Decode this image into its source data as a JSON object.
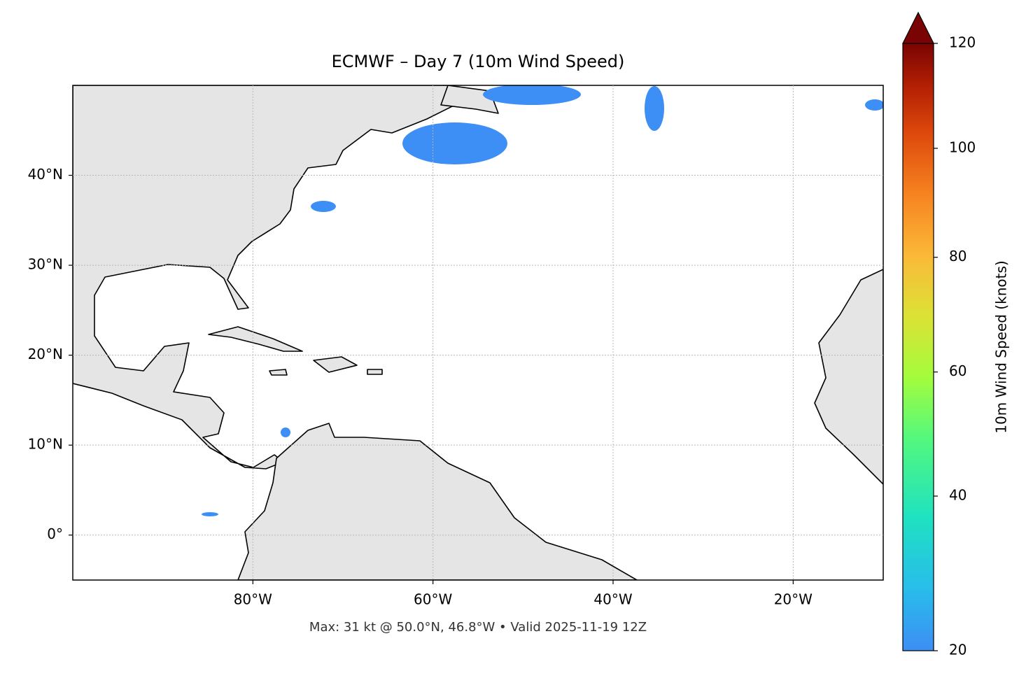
{
  "chart_data": {
    "type": "map",
    "title": "ECMWF – Day 7 (10m Wind Speed)",
    "xlim": [
      -100,
      -10
    ],
    "ylim": [
      -5,
      50
    ],
    "xticks": [
      {
        "value": -80,
        "label": "80°W"
      },
      {
        "value": -60,
        "label": "60°W"
      },
      {
        "value": -40,
        "label": "40°W"
      },
      {
        "value": -20,
        "label": "20°W"
      }
    ],
    "yticks": [
      {
        "value": 0,
        "label": "0°"
      },
      {
        "value": 10,
        "label": "10°N"
      },
      {
        "value": 20,
        "label": "20°N"
      },
      {
        "value": 30,
        "label": "30°N"
      },
      {
        "value": 40,
        "label": "40°N"
      }
    ],
    "grid": true,
    "colorbar": {
      "label": "10m Wind Speed (knots)",
      "lim": [
        20,
        120
      ],
      "ticks": [
        20,
        40,
        60,
        80,
        100,
        120
      ]
    },
    "annotation": "Max: 31 kt @ 50.0°N, 46.8°W • Valid 2025-11-19 12Z"
  }
}
